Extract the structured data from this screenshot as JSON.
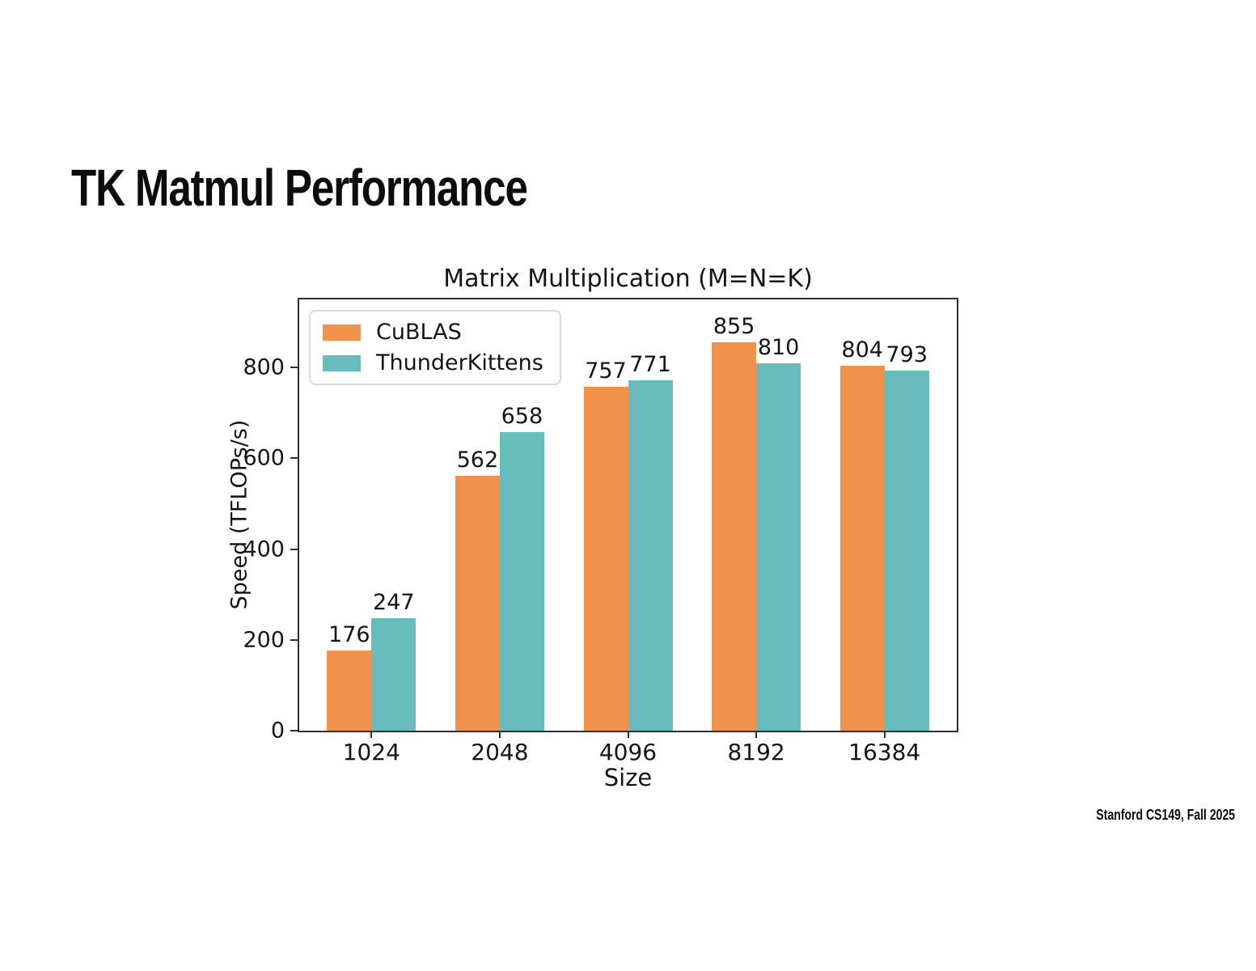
{
  "slide": {
    "title": "TK Matmul Performance",
    "footer": "Stanford CS149, Fall 2025"
  },
  "chart_data": {
    "type": "bar",
    "title": "Matrix Multiplication (M=N=K)",
    "xlabel": "Size",
    "ylabel": "Speed (TFLOPs/s)",
    "categories": [
      "1024",
      "2048",
      "4096",
      "8192",
      "16384"
    ],
    "series": [
      {
        "name": "CuBLAS",
        "color": "#F0924C",
        "values": [
          176,
          562,
          757,
          855,
          804
        ]
      },
      {
        "name": "ThunderKittens",
        "color": "#69BCBC",
        "values": [
          247,
          658,
          771,
          810,
          793
        ]
      }
    ],
    "bar_value_labels": [
      [
        "176",
        "562",
        "757",
        "855",
        "804"
      ],
      [
        "247",
        "658",
        "771",
        "810",
        "793"
      ]
    ],
    "ylim": [
      0,
      950
    ],
    "yticks": [
      0,
      200,
      400,
      600,
      800
    ],
    "legend_position": "upper-left",
    "grid": false,
    "axis_color": "#2e2e2e",
    "text_color": "#151515"
  }
}
